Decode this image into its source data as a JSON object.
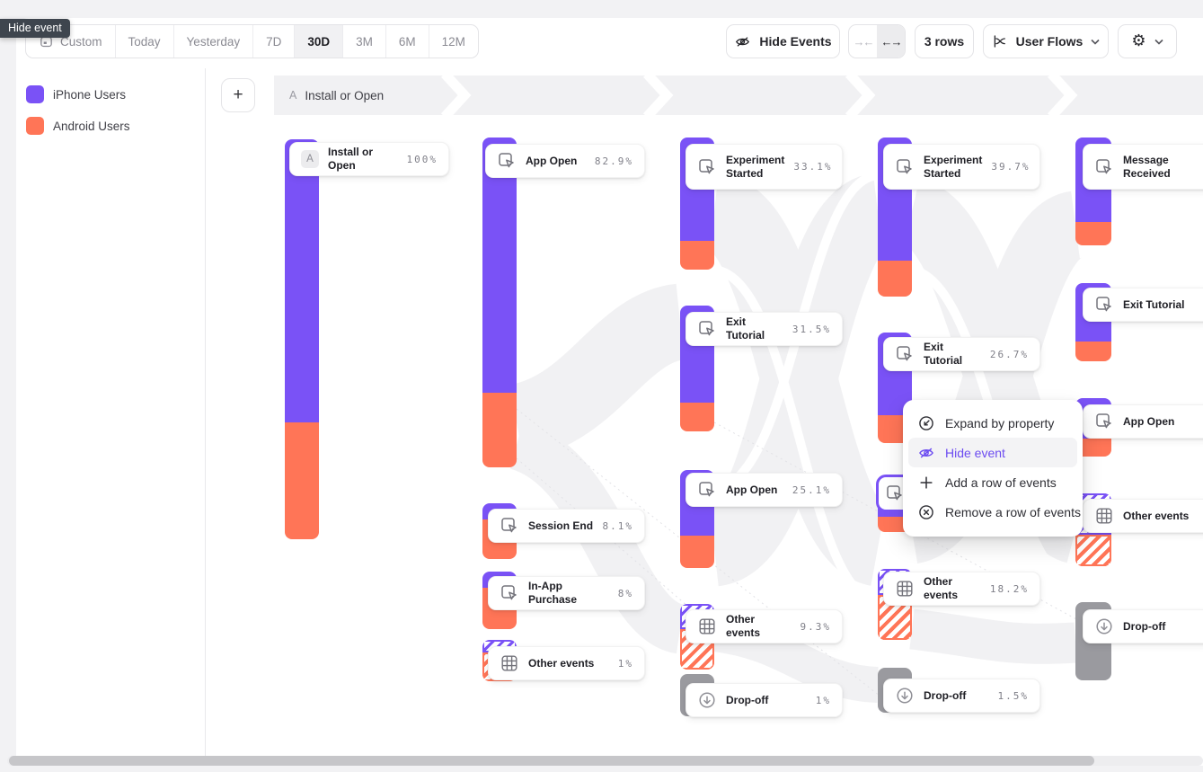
{
  "tooltip": {
    "label": "Hide event"
  },
  "toolbar": {
    "date_ranges": [
      {
        "label": "Custom"
      },
      {
        "label": "Today"
      },
      {
        "label": "Yesterday"
      },
      {
        "label": "7D"
      },
      {
        "label": "30D",
        "selected": true
      },
      {
        "label": "3M"
      },
      {
        "label": "6M"
      },
      {
        "label": "12M"
      }
    ],
    "selected_range": "30D",
    "hide_events_label": "Hide Events",
    "collapse_arrows": "→←",
    "expand_arrows": "←→",
    "rows_label": "3 rows",
    "chart_type_label": "User Flows"
  },
  "legend": {
    "items": [
      {
        "label": "iPhone Users",
        "color": "#7A52F6"
      },
      {
        "label": "Android Users",
        "color": "#FF7557"
      }
    ]
  },
  "breadcrumb": {
    "badge": "A",
    "label": "Install or Open"
  },
  "menu": {
    "items": [
      {
        "label": "Expand by property",
        "icon": "expand-icon"
      },
      {
        "label": "Hide event",
        "icon": "eye-off-icon",
        "highlighted": true
      },
      {
        "label": "Add a row of events",
        "icon": "plus-icon"
      },
      {
        "label": "Remove a row of events",
        "icon": "circle-x-icon"
      }
    ]
  },
  "flow": {
    "columns": [
      [
        {
          "id": "c1-install",
          "label": "Install or Open",
          "badge": "A",
          "pct": "100%"
        }
      ],
      [
        {
          "id": "c2-app-open",
          "label": "App Open",
          "pct": "82.9%",
          "icon": "event"
        },
        {
          "id": "c2-session-end",
          "label": "Session End",
          "pct": "8.1%",
          "icon": "event"
        },
        {
          "id": "c2-in-app-purchase",
          "label": "In-App Purchase",
          "pct": "8%",
          "icon": "event"
        },
        {
          "id": "c2-other-events",
          "label": "Other events",
          "pct": "1%",
          "icon": "grid"
        }
      ],
      [
        {
          "id": "c3-experiment-started",
          "label": "Experiment Started",
          "pct": "33.1%",
          "icon": "event"
        },
        {
          "id": "c3-exit-tutorial",
          "label": "Exit Tutorial",
          "pct": "31.5%",
          "icon": "event"
        },
        {
          "id": "c3-app-open",
          "label": "App Open",
          "pct": "25.1%",
          "icon": "event"
        },
        {
          "id": "c3-other-events",
          "label": "Other events",
          "pct": "9.3%",
          "icon": "grid"
        },
        {
          "id": "c3-drop-off",
          "label": "Drop-off",
          "pct": "1%",
          "icon": "dropoff"
        }
      ],
      [
        {
          "id": "c4-experiment-started",
          "label": "Experiment Started",
          "pct": "39.7%",
          "icon": "event"
        },
        {
          "id": "c4-exit-tutorial",
          "label": "Exit Tutorial",
          "pct": "26.7%",
          "icon": "event"
        },
        {
          "id": "c4-selected",
          "label": "",
          "icon": "event",
          "selected": true,
          "card": false
        },
        {
          "id": "c4-other-events",
          "label": "Other events",
          "pct": "18.2%",
          "icon": "grid"
        },
        {
          "id": "c4-drop-off",
          "label": "Drop-off",
          "pct": "1.5%",
          "icon": "dropoff"
        }
      ],
      [
        {
          "id": "c5-message-received",
          "label": "Message Received",
          "icon": "event"
        },
        {
          "id": "c5-exit-tutorial",
          "label": "Exit Tutorial",
          "icon": "event"
        },
        {
          "id": "c5-app-open",
          "label": "App Open",
          "icon": "event"
        },
        {
          "id": "c5-other-events",
          "label": "Other events",
          "icon": "grid"
        },
        {
          "id": "c5-drop-off",
          "label": "Drop-off",
          "icon": "dropoff"
        }
      ]
    ]
  },
  "colors": {
    "purple": "#7A52F6",
    "orange": "#FF7557",
    "dropoff_gray": "#9a9a9f",
    "menu_highlight_text": "#6C4CF1",
    "tooltip_bg": "#3E454E"
  }
}
